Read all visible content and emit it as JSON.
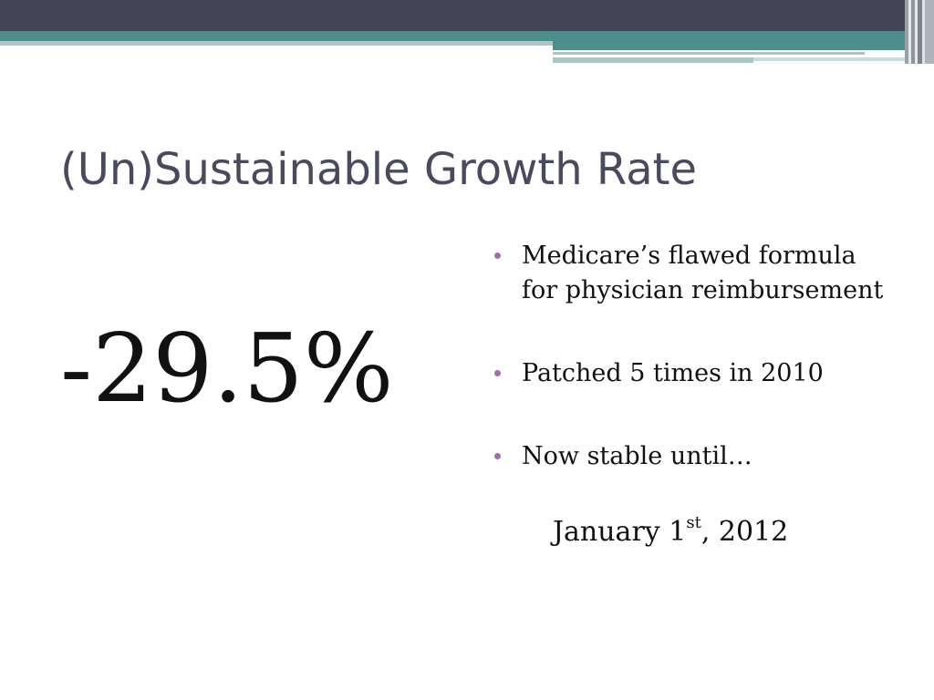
{
  "colors": {
    "header_dark": "#454457",
    "accent_teal": "#4f8c8c",
    "accent_teal_light": "#a9c7c9",
    "title_text": "#4a4a5e",
    "bullet_dot": "#a36cb3",
    "body_text": "#111111"
  },
  "slide": {
    "title": "(Un)Sustainable Growth Rate",
    "big_number": "-29.5%",
    "bullets": [
      "Medicare’s flawed formula for physician reimbursement",
      "Patched 5 times in 2010",
      "Now stable until…"
    ],
    "subline": {
      "before": "January 1",
      "superscript": "st",
      "after": ", 2012"
    }
  }
}
